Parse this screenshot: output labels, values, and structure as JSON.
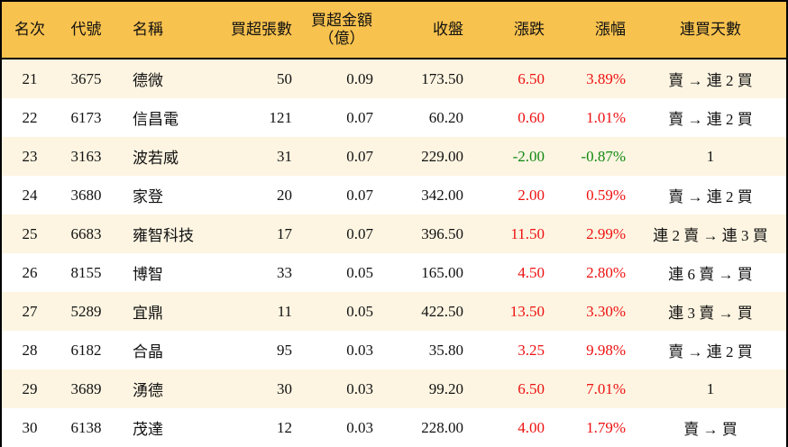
{
  "headers": {
    "rank": "名次",
    "code": "代號",
    "name": "名稱",
    "net_buy_lots": "買超張數",
    "net_buy_amount": "買超金額",
    "net_buy_amount_unit": "（億）",
    "close": "收盤",
    "change": "漲跌",
    "change_pct": "漲幅",
    "consecutive_days": "連買天數"
  },
  "colors": {
    "header_bg": "#f8c24e",
    "alt_row_bg": "#fdf5e2",
    "up": "#ee1111",
    "down": "#118811"
  },
  "rows": [
    {
      "rank": "21",
      "code": "3675",
      "name": "德微",
      "lots": "50",
      "amount": "0.09",
      "close": "173.50",
      "change": "6.50",
      "pct": "3.89%",
      "days": "賣 → 連 2 買",
      "dir": "up"
    },
    {
      "rank": "22",
      "code": "6173",
      "name": "信昌電",
      "lots": "121",
      "amount": "0.07",
      "close": "60.20",
      "change": "0.60",
      "pct": "1.01%",
      "days": "賣 → 連 2 買",
      "dir": "up"
    },
    {
      "rank": "23",
      "code": "3163",
      "name": "波若威",
      "lots": "31",
      "amount": "0.07",
      "close": "229.00",
      "change": "-2.00",
      "pct": "-0.87%",
      "days": "1",
      "dir": "down"
    },
    {
      "rank": "24",
      "code": "3680",
      "name": "家登",
      "lots": "20",
      "amount": "0.07",
      "close": "342.00",
      "change": "2.00",
      "pct": "0.59%",
      "days": "賣 → 連 2 買",
      "dir": "up"
    },
    {
      "rank": "25",
      "code": "6683",
      "name": "雍智科技",
      "lots": "17",
      "amount": "0.07",
      "close": "396.50",
      "change": "11.50",
      "pct": "2.99%",
      "days": "連 2 賣 → 連 3 買",
      "dir": "up"
    },
    {
      "rank": "26",
      "code": "8155",
      "name": "博智",
      "lots": "33",
      "amount": "0.05",
      "close": "165.00",
      "change": "4.50",
      "pct": "2.80%",
      "days": "連 6 賣 → 買",
      "dir": "up"
    },
    {
      "rank": "27",
      "code": "5289",
      "name": "宜鼎",
      "lots": "11",
      "amount": "0.05",
      "close": "422.50",
      "change": "13.50",
      "pct": "3.30%",
      "days": "連 3 賣 → 買",
      "dir": "up"
    },
    {
      "rank": "28",
      "code": "6182",
      "name": "合晶",
      "lots": "95",
      "amount": "0.03",
      "close": "35.80",
      "change": "3.25",
      "pct": "9.98%",
      "days": "賣 → 連 2 買",
      "dir": "up"
    },
    {
      "rank": "29",
      "code": "3689",
      "name": "湧德",
      "lots": "30",
      "amount": "0.03",
      "close": "99.20",
      "change": "6.50",
      "pct": "7.01%",
      "days": "1",
      "dir": "up"
    },
    {
      "rank": "30",
      "code": "6138",
      "name": "茂達",
      "lots": "12",
      "amount": "0.03",
      "close": "228.00",
      "change": "4.00",
      "pct": "1.79%",
      "days": "賣 → 買",
      "dir": "up"
    }
  ]
}
